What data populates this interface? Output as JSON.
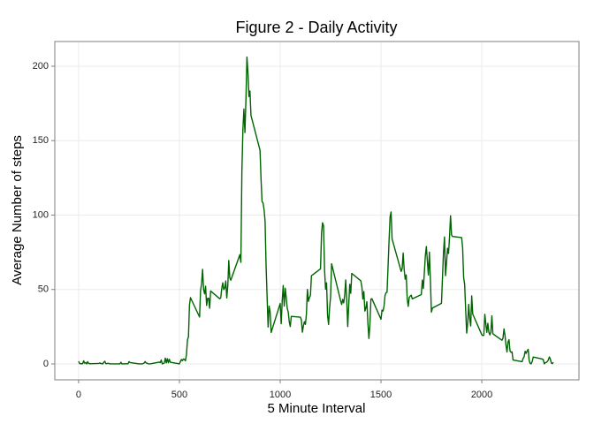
{
  "chart_data": {
    "type": "line",
    "title": "Figure 2 - Daily Activity",
    "xlabel": "5 Minute Interval",
    "ylabel": "Average Number of steps",
    "color": "#006400",
    "grid": true,
    "xlim": [
      -118,
      2482
    ],
    "ylim": [
      -10.7,
      216.6
    ],
    "xticks": [
      0,
      500,
      1000,
      1500,
      2000
    ],
    "yticks": [
      0,
      50,
      100,
      150,
      200
    ],
    "x": [
      0,
      5,
      10,
      15,
      20,
      25,
      30,
      35,
      40,
      45,
      50,
      55,
      100,
      105,
      110,
      115,
      120,
      125,
      130,
      135,
      140,
      145,
      150,
      155,
      200,
      205,
      210,
      215,
      220,
      225,
      230,
      235,
      240,
      245,
      250,
      255,
      300,
      305,
      310,
      315,
      320,
      325,
      330,
      335,
      340,
      345,
      350,
      355,
      400,
      405,
      410,
      415,
      420,
      425,
      430,
      435,
      440,
      445,
      450,
      455,
      500,
      505,
      510,
      515,
      520,
      525,
      530,
      535,
      540,
      545,
      550,
      555,
      600,
      605,
      610,
      615,
      620,
      625,
      630,
      635,
      640,
      645,
      650,
      655,
      700,
      705,
      710,
      715,
      720,
      725,
      730,
      735,
      740,
      745,
      750,
      755,
      800,
      805,
      810,
      815,
      820,
      825,
      830,
      835,
      840,
      845,
      850,
      855,
      900,
      905,
      910,
      915,
      920,
      925,
      930,
      935,
      940,
      945,
      950,
      955,
      1000,
      1005,
      1010,
      1015,
      1020,
      1025,
      1030,
      1035,
      1040,
      1045,
      1050,
      1055,
      1100,
      1105,
      1110,
      1115,
      1120,
      1125,
      1130,
      1135,
      1140,
      1145,
      1150,
      1155,
      1200,
      1205,
      1210,
      1215,
      1220,
      1225,
      1230,
      1235,
      1240,
      1245,
      1250,
      1255,
      1300,
      1305,
      1310,
      1315,
      1320,
      1325,
      1330,
      1335,
      1340,
      1345,
      1350,
      1355,
      1400,
      1405,
      1410,
      1415,
      1420,
      1425,
      1430,
      1435,
      1440,
      1445,
      1450,
      1455,
      1500,
      1505,
      1510,
      1515,
      1520,
      1525,
      1530,
      1535,
      1540,
      1545,
      1550,
      1555,
      1600,
      1605,
      1610,
      1615,
      1620,
      1625,
      1630,
      1635,
      1640,
      1645,
      1650,
      1655,
      1700,
      1705,
      1710,
      1715,
      1720,
      1725,
      1730,
      1735,
      1740,
      1745,
      1750,
      1755,
      1800,
      1805,
      1810,
      1815,
      1820,
      1825,
      1830,
      1835,
      1840,
      1845,
      1850,
      1855,
      1900,
      1905,
      1910,
      1915,
      1920,
      1925,
      1930,
      1935,
      1940,
      1945,
      1950,
      1955,
      2000,
      2005,
      2010,
      2015,
      2020,
      2025,
      2030,
      2035,
      2040,
      2045,
      2050,
      2055,
      2100,
      2105,
      2110,
      2115,
      2120,
      2125,
      2130,
      2135,
      2140,
      2145,
      2150,
      2155,
      2200,
      2205,
      2210,
      2215,
      2220,
      2225,
      2230,
      2235,
      2240,
      2245,
      2250,
      2255,
      2300,
      2305,
      2310,
      2315,
      2320,
      2325,
      2330,
      2335,
      2340,
      2345,
      2350,
      2355
    ],
    "values": [
      1.7,
      0.3,
      0.1,
      0.2,
      0.1,
      2.1,
      0.5,
      0.9,
      0,
      1.5,
      0.3,
      0.1,
      0.3,
      0.7,
      0.2,
      0.3,
      0,
      1.1,
      1.8,
      0.2,
      0.2,
      0.4,
      0.3,
      0,
      0,
      0,
      1.1,
      0,
      0,
      0.1,
      0,
      0.2,
      0,
      0,
      1.5,
      0.9,
      0,
      0,
      0,
      0,
      0.2,
      0.6,
      1.6,
      0.6,
      0.5,
      0.1,
      0,
      0,
      1.2,
      0.9,
      2.6,
      0,
      0.3,
      0.6,
      3.9,
      0.7,
      3.5,
      0.8,
      3.1,
      1.1,
      0,
      1.6,
      3,
      2.2,
      3.3,
      3,
      2.1,
      6.1,
      16,
      18.3,
      39.5,
      44.5,
      31.5,
      49.3,
      53.8,
      63.5,
      50,
      47.1,
      52.2,
      39.3,
      44,
      44.2,
      37.4,
      49,
      43.8,
      44.4,
      50.5,
      54.5,
      49.9,
      51,
      55.7,
      44.3,
      52.3,
      69.5,
      57.8,
      56.2,
      73.4,
      68.2,
      129.4,
      157.5,
      171.2,
      155.4,
      177.3,
      206.2,
      195.9,
      179.6,
      183.4,
      167,
      143.5,
      124,
      109.1,
      108.1,
      103.7,
      95.9,
      66.2,
      45.2,
      24.8,
      38.8,
      35,
      21.1,
      40.6,
      27,
      42.4,
      52.7,
      38.9,
      50.8,
      44.3,
      37.4,
      34.7,
      28.3,
      25.1,
      31.9,
      31.4,
      29.7,
      21.3,
      25.5,
      28.4,
      26.5,
      33.4,
      50,
      42,
      44.6,
      46,
      59.2,
      63.9,
      87.6,
      94.8,
      92.8,
      63.4,
      50.2,
      54.5,
      32.4,
      26.5,
      37.7,
      45.1,
      67.3,
      42.3,
      39.9,
      43.3,
      41,
      46.2,
      56.4,
      42.8,
      25.1,
      40,
      53.5,
      47.4,
      60.8,
      55.8,
      52,
      43.6,
      48.7,
      35.5,
      37.5,
      41.8,
      27.5,
      17.1,
      26.1,
      43.6,
      43.8,
      30,
      36.1,
      35.5,
      38.8,
      46,
      47.8,
      48.1,
      65.3,
      82.9,
      98.7,
      102.1,
      84,
      62.1,
      64.1,
      74.5,
      63.2,
      56.9,
      59.8,
      43.9,
      38.6,
      44.7,
      45.5,
      46.2,
      43.7,
      46.6,
      56.3,
      50.7,
      61.2,
      72.7,
      78.9,
      68.9,
      59.7,
      75.1,
      56.5,
      34.8,
      37.5,
      40.7,
      58,
      74.7,
      85.3,
      59.3,
      67.8,
      77.7,
      74.2,
      85.3,
      99.5,
      86.6,
      85.6,
      84.9,
      77.8,
      58,
      53.4,
      36.3,
      20.7,
      27.4,
      40,
      30.2,
      25.5,
      45.7,
      33.5,
      19.6,
      19,
      19.3,
      33.3,
      26.8,
      21.2,
      27.3,
      21.3,
      19.5,
      21.3,
      32.3,
      20.2,
      15.9,
      17.2,
      23.5,
      19.2,
      12.5,
      8,
      14.7,
      16.3,
      8.7,
      7.8,
      8.1,
      2.6,
      1.5,
      3.7,
      4.8,
      8.5,
      7.1,
      8.7,
      9.8,
      2.2,
      0.3,
      0.1,
      1.6,
      4.6,
      3.3,
      2.8,
      0,
      0.8,
      1,
      1.6,
      2.6,
      4.7,
      3.3,
      0.6,
      0.2,
      1.1
    ]
  }
}
